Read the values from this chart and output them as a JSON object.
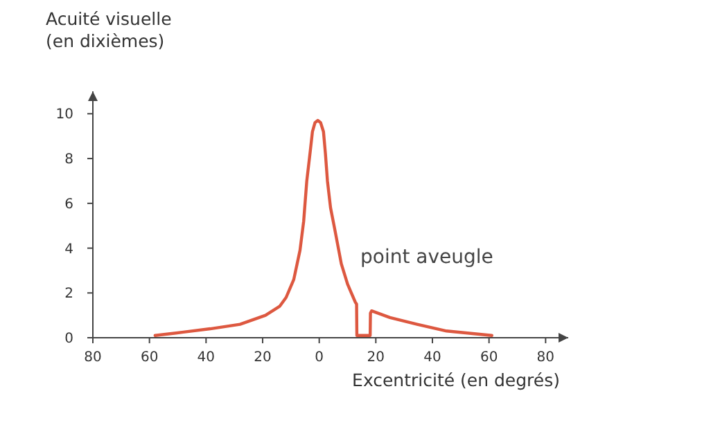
{
  "chart_data": {
    "type": "line",
    "ylabel": "Acuité visuelle\n(en dixièmes)",
    "xlabel": "Excentricité (en degrés)",
    "xlim": [
      -80,
      88
    ],
    "ylim": [
      0,
      11
    ],
    "xticks": [
      {
        "value": -80,
        "label": "80"
      },
      {
        "value": -60,
        "label": "60"
      },
      {
        "value": -40,
        "label": "40"
      },
      {
        "value": -20,
        "label": "20"
      },
      0,
      20,
      40,
      60,
      80
    ],
    "yticks": [
      0,
      2,
      4,
      6,
      8,
      10
    ],
    "grid": false,
    "marker": "none",
    "line_style": "solid",
    "annotations": [
      "point aveugle"
    ],
    "series": [
      {
        "color": "#dd5840",
        "x": [
          -58,
          -48,
          -38.5,
          -28,
          -19,
          -14,
          -11.7,
          -9,
          -6.8,
          -5.5,
          -4.4,
          -3.2,
          -2.4,
          -1.5,
          -0.5,
          0.5,
          1.5,
          2.2,
          2.9,
          4,
          5.4,
          7.8,
          10,
          12.7,
          13.2,
          13.3,
          18,
          18.1,
          18.5,
          25,
          34.6,
          45,
          61
        ],
        "values": [
          0.1,
          0.25,
          0.4,
          0.6,
          1.0,
          1.4,
          1.8,
          2.6,
          3.9,
          5.2,
          7.0,
          8.3,
          9.2,
          9.6,
          9.7,
          9.6,
          9.2,
          8.2,
          7.0,
          5.8,
          4.9,
          3.3,
          2.4,
          1.6,
          1.5,
          0.1,
          0.1,
          1.1,
          1.2,
          0.9,
          0.6,
          0.3,
          0.1
        ]
      }
    ]
  }
}
